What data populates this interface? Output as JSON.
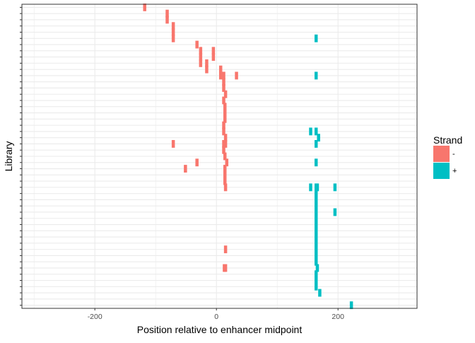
{
  "chart_data": {
    "type": "scatter",
    "xlabel": "Position relative to enhancer midpoint",
    "ylabel": "Library",
    "xlim": [
      -320,
      330
    ],
    "x_ticks": [
      -200,
      0,
      200
    ],
    "x_tick_labels": [
      "-200",
      "0",
      "200"
    ],
    "x_minor_breaks": [
      -300,
      -100,
      100,
      300
    ],
    "y_row_count": 49,
    "y_tick_labels": [],
    "grid": true,
    "legend_placement": "right",
    "legend": {
      "title": "Strand",
      "entries": [
        {
          "label": "-",
          "color": "#F8766D"
        },
        {
          "label": "+",
          "color": "#00BFC4"
        }
      ]
    },
    "series": [
      {
        "name": "-",
        "color": "#F8766D",
        "points": [
          {
            "x": -118,
            "row": 0
          },
          {
            "x": -81,
            "row": 1
          },
          {
            "x": -81,
            "row": 2
          },
          {
            "x": -71,
            "row": 3
          },
          {
            "x": -71,
            "row": 4
          },
          {
            "x": -71,
            "row": 5
          },
          {
            "x": -32,
            "row": 6
          },
          {
            "x": -26,
            "row": 7
          },
          {
            "x": -5,
            "row": 7
          },
          {
            "x": -26,
            "row": 8
          },
          {
            "x": -5,
            "row": 8
          },
          {
            "x": -26,
            "row": 9
          },
          {
            "x": -16,
            "row": 9
          },
          {
            "x": -16,
            "row": 10
          },
          {
            "x": 7,
            "row": 10
          },
          {
            "x": 7,
            "row": 11
          },
          {
            "x": 12,
            "row": 11
          },
          {
            "x": 33,
            "row": 11
          },
          {
            "x": 12,
            "row": 12
          },
          {
            "x": 12,
            "row": 13
          },
          {
            "x": 15,
            "row": 14
          },
          {
            "x": 12,
            "row": 15
          },
          {
            "x": 14,
            "row": 16
          },
          {
            "x": 14,
            "row": 17
          },
          {
            "x": 14,
            "row": 18
          },
          {
            "x": 12,
            "row": 19
          },
          {
            "x": 12,
            "row": 20
          },
          {
            "x": 15,
            "row": 21
          },
          {
            "x": 12,
            "row": 22
          },
          {
            "x": 15,
            "row": 22
          },
          {
            "x": -71,
            "row": 22
          },
          {
            "x": 12,
            "row": 23
          },
          {
            "x": 14,
            "row": 24
          },
          {
            "x": -32,
            "row": 25
          },
          {
            "x": 17,
            "row": 25
          },
          {
            "x": -51,
            "row": 26
          },
          {
            "x": 14,
            "row": 26
          },
          {
            "x": 14,
            "row": 27
          },
          {
            "x": 14,
            "row": 28
          },
          {
            "x": 15,
            "row": 29
          },
          {
            "x": 15,
            "row": 39
          },
          {
            "x": 13,
            "row": 42
          },
          {
            "x": 15,
            "row": 42
          }
        ]
      },
      {
        "name": "+",
        "color": "#00BFC4",
        "points": [
          {
            "x": 164,
            "row": 5
          },
          {
            "x": 164,
            "row": 11
          },
          {
            "x": 155,
            "row": 20
          },
          {
            "x": 164,
            "row": 20
          },
          {
            "x": 168,
            "row": 21
          },
          {
            "x": 164,
            "row": 22
          },
          {
            "x": 164,
            "row": 25
          },
          {
            "x": 155,
            "row": 29
          },
          {
            "x": 164,
            "row": 29
          },
          {
            "x": 166,
            "row": 29
          },
          {
            "x": 195,
            "row": 29
          },
          {
            "x": 164,
            "row": 30
          },
          {
            "x": 164,
            "row": 31
          },
          {
            "x": 164,
            "row": 32
          },
          {
            "x": 195,
            "row": 33
          },
          {
            "x": 164,
            "row": 33
          },
          {
            "x": 164,
            "row": 34
          },
          {
            "x": 164,
            "row": 35
          },
          {
            "x": 164,
            "row": 36
          },
          {
            "x": 164,
            "row": 37
          },
          {
            "x": 164,
            "row": 38
          },
          {
            "x": 164,
            "row": 39
          },
          {
            "x": 164,
            "row": 40
          },
          {
            "x": 164,
            "row": 41
          },
          {
            "x": 166,
            "row": 42
          },
          {
            "x": 164,
            "row": 43
          },
          {
            "x": 164,
            "row": 44
          },
          {
            "x": 164,
            "row": 45
          },
          {
            "x": 170,
            "row": 46
          },
          {
            "x": 222,
            "row": 48
          }
        ]
      }
    ]
  }
}
